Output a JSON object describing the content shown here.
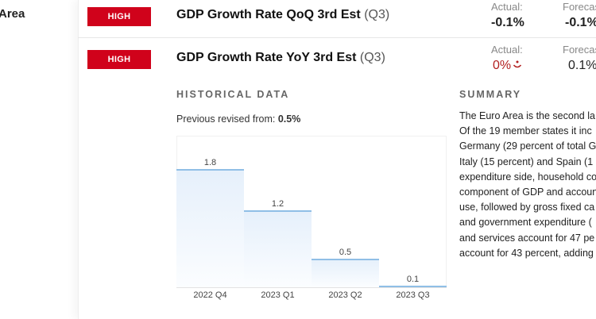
{
  "sidebar": {
    "title": "Area"
  },
  "rows": [
    {
      "impact": "HIGH",
      "title": "GDP Growth Rate QoQ 3rd Est",
      "period": "(Q3)",
      "actual_label": "Actual:",
      "actual": "-0.1%",
      "forecast_label": "Forecas",
      "forecast": "-0.1%"
    },
    {
      "impact": "HIGH",
      "title": "GDP Growth Rate YoY 3rd Est",
      "period": "(Q3)",
      "actual_label": "Actual:",
      "actual": "0%",
      "actual_icon": "sad-face-icon",
      "forecast_label": "Forecas",
      "forecast": "0.1%"
    }
  ],
  "historical": {
    "heading": "HISTORICAL DATA",
    "prev_label": "Previous revised from:",
    "prev_value": "0.5%"
  },
  "summary": {
    "heading": "SUMMARY",
    "lines": [
      "The Euro Area is the second la",
      "Of the 19 member states it inc",
      "Germany (29 percent of total G",
      "Italy (15 percent) and Spain (1",
      "expenditure side, household co",
      "component of GDP and accoun",
      "use, followed by gross fixed ca",
      "and government expenditure (",
      "and services account for 47 pe",
      "account for 43 percent, adding"
    ]
  },
  "colors": {
    "badge": "#d0021b",
    "negative": "#b21f1f",
    "bar_line": "#90bfe6"
  },
  "chart_data": {
    "type": "bar",
    "categories": [
      "2022 Q4",
      "2023 Q1",
      "2023 Q2",
      "2023 Q3"
    ],
    "values": [
      1.8,
      1.2,
      0.5,
      0.1
    ],
    "labels": [
      "1.8",
      "1.2",
      "0.5",
      "0.1"
    ],
    "title": "",
    "xlabel": "",
    "ylabel": "",
    "ylim": [
      0,
      2.2
    ],
    "grid": false
  }
}
